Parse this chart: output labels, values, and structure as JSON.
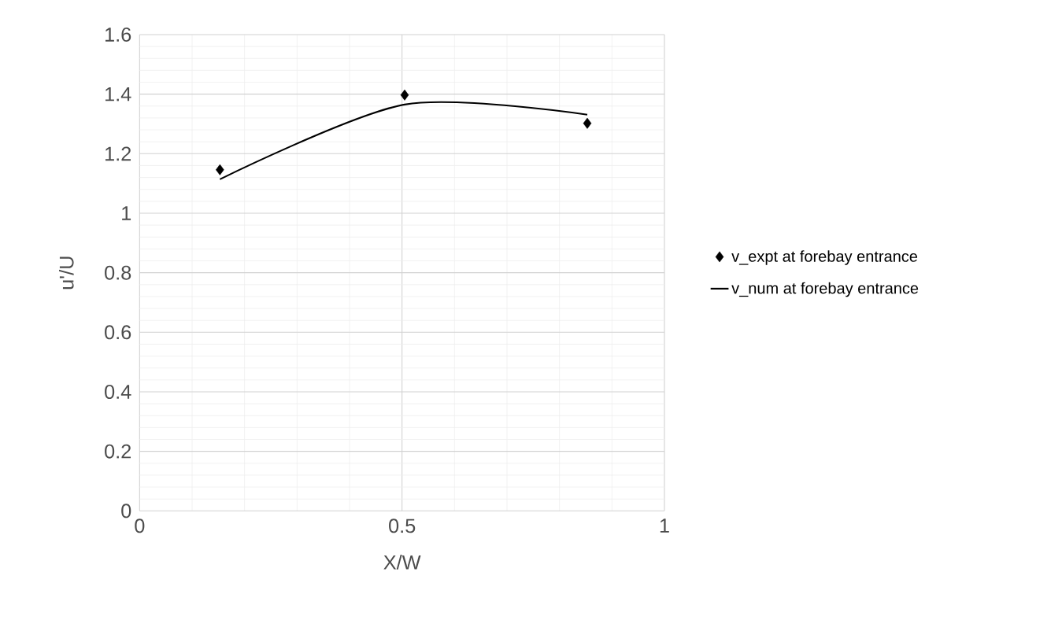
{
  "chart_data": {
    "type": "scatter",
    "xlabel": "X/W",
    "ylabel": "u'/U",
    "series": [
      {
        "name": "v_expt at forebay entrance",
        "marker": "diamond",
        "color": "#000000",
        "x": [
          0.153,
          0.505,
          0.853
        ],
        "values": [
          1.146,
          1.397,
          1.302
        ]
      },
      {
        "name": "v_num at forebay entrance",
        "type": "line",
        "marker": "none",
        "color": "#000000",
        "x": [
          0.153,
          0.505,
          0.853
        ],
        "values": [
          1.114,
          1.365,
          1.331
        ]
      }
    ],
    "xlim": [
      0,
      1
    ],
    "ylim": [
      0,
      1.6
    ],
    "xticks": [
      0,
      0.5,
      1
    ],
    "yticks": [
      0,
      0.2,
      0.4,
      0.6,
      0.8,
      1,
      1.2,
      1.4,
      1.6
    ],
    "grid": true,
    "legend": "right",
    "line_style": "solid"
  }
}
